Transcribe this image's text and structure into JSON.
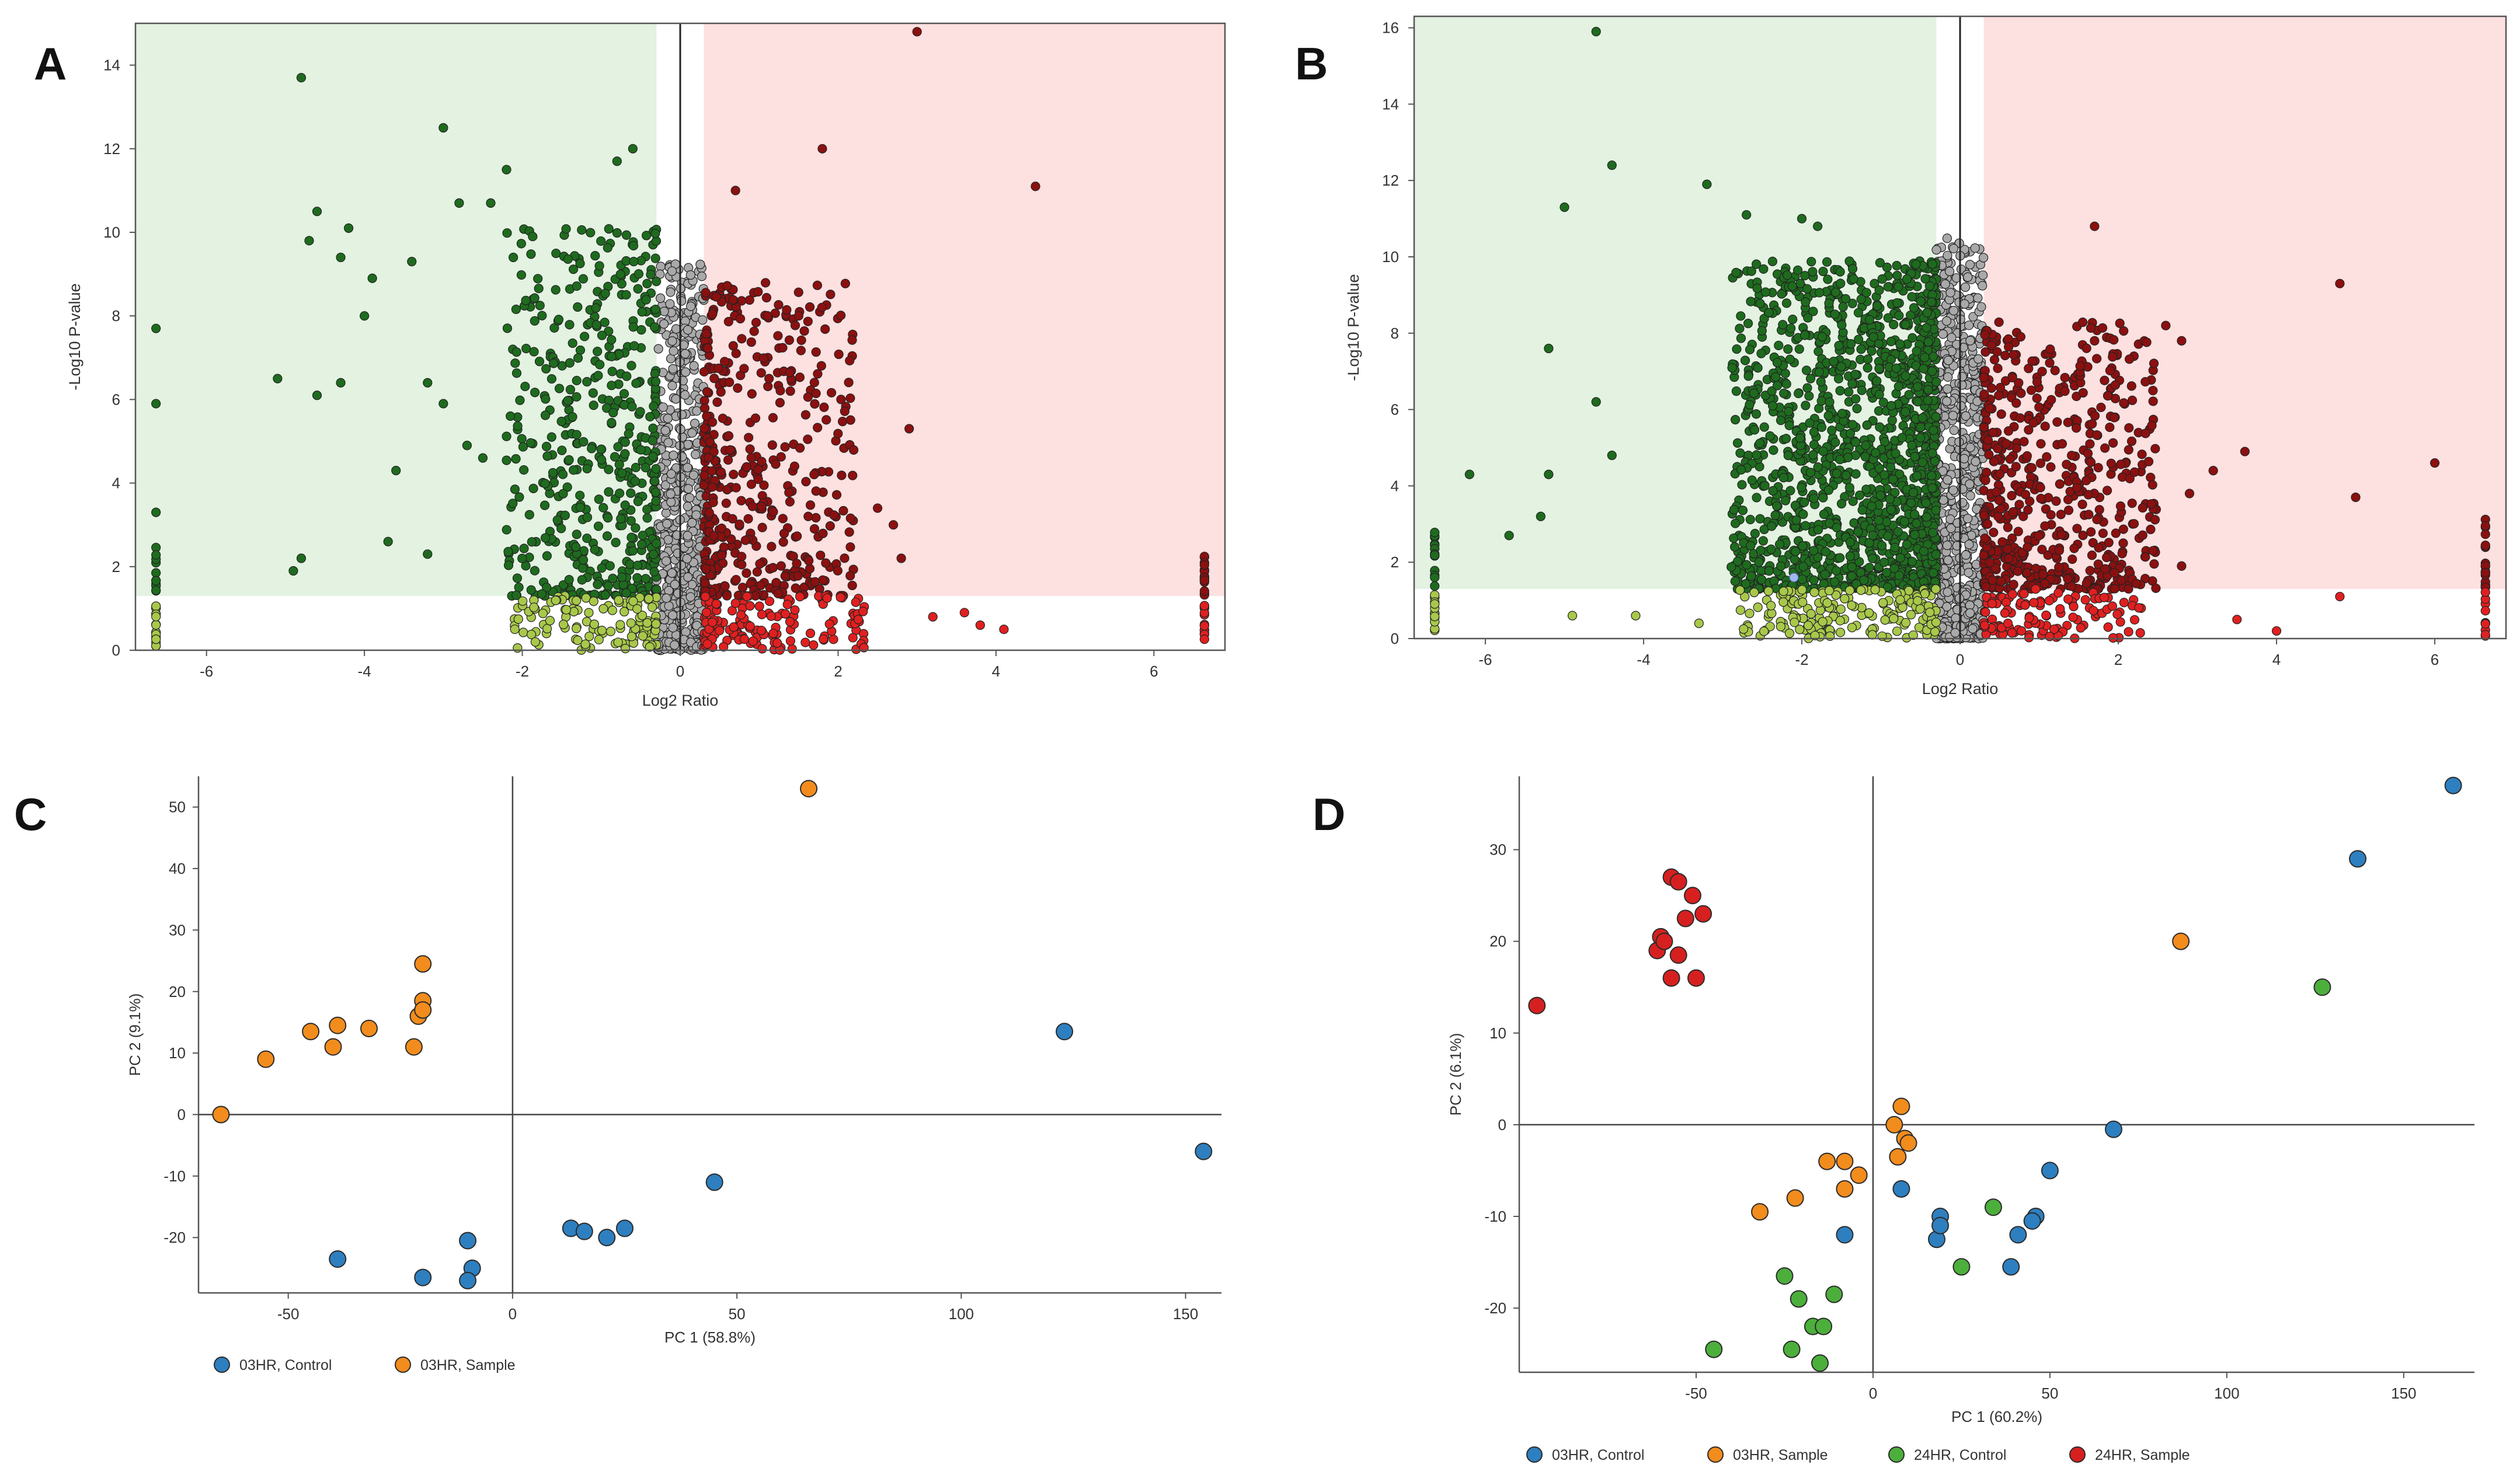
{
  "figure": {
    "panel_labels": [
      "A",
      "B",
      "C",
      "D"
    ]
  },
  "colors": {
    "green_zone": "#e3f2e1",
    "red_zone": "#fde0e0",
    "dark_green": "#1e6b1e",
    "light_green": "#a8c84a",
    "gray": "#a9a9a9",
    "dark_red": "#8b1010",
    "red": "#e02020",
    "blue": "#2e7fbf",
    "orange": "#f28c1c",
    "green": "#4caf3c",
    "pca_red": "#d62020"
  },
  "chart_data": [
    {
      "id": "A",
      "type": "scatter",
      "subtype": "volcano",
      "xlabel": "Log2 Ratio",
      "ylabel": "-Log10 P-value",
      "xlim": [
        -6.9,
        6.9
      ],
      "ylim": [
        0,
        15
      ],
      "xticks": [
        -6,
        -4,
        -2,
        0,
        2,
        4,
        6
      ],
      "yticks": [
        0,
        2,
        4,
        6,
        8,
        10,
        12,
        14
      ],
      "significance_threshold_y": 1.3,
      "fold_change_threshold_x": [
        -0.3,
        0.3
      ],
      "edge_x": [
        -6.64,
        6.64
      ],
      "cluster_seed": 11,
      "notable_points": [
        {
          "x": -4.8,
          "y": 13.7
        },
        {
          "x": -3.0,
          "y": 12.5
        },
        {
          "x": -2.2,
          "y": 11.5
        },
        {
          "x": -0.8,
          "y": 11.7
        },
        {
          "x": -0.6,
          "y": 12.0
        },
        {
          "x": -4.6,
          "y": 10.5
        },
        {
          "x": -4.2,
          "y": 10.1
        },
        {
          "x": -2.8,
          "y": 10.7
        },
        {
          "x": -2.4,
          "y": 10.7
        },
        {
          "x": -4.7,
          "y": 9.8
        },
        {
          "x": -4.3,
          "y": 9.4
        },
        {
          "x": -3.4,
          "y": 9.3
        },
        {
          "x": -3.9,
          "y": 8.9
        },
        {
          "x": -4.0,
          "y": 8.0
        },
        {
          "x": -5.1,
          "y": 6.5
        },
        {
          "x": -4.6,
          "y": 6.1
        },
        {
          "x": -4.3,
          "y": 6.4
        },
        {
          "x": -3.2,
          "y": 6.4
        },
        {
          "x": -3.0,
          "y": 5.9
        },
        {
          "x": -2.7,
          "y": 4.9
        },
        {
          "x": -3.6,
          "y": 4.3
        },
        {
          "x": -3.7,
          "y": 2.6
        },
        {
          "x": -3.2,
          "y": 2.3
        },
        {
          "x": -4.9,
          "y": 1.9
        },
        {
          "x": -4.8,
          "y": 2.2
        },
        {
          "x": -2.5,
          "y": 4.6
        },
        {
          "x": 3.0,
          "y": 14.8
        },
        {
          "x": 1.8,
          "y": 12.0
        },
        {
          "x": 4.5,
          "y": 11.1
        },
        {
          "x": 0.7,
          "y": 11.0
        },
        {
          "x": 1.5,
          "y": 8.0
        },
        {
          "x": 2.9,
          "y": 5.3
        },
        {
          "x": 2.5,
          "y": 3.4
        },
        {
          "x": 2.7,
          "y": 3.0
        },
        {
          "x": 2.8,
          "y": 2.2
        },
        {
          "x": 3.2,
          "y": 0.8
        },
        {
          "x": 3.6,
          "y": 0.9
        },
        {
          "x": 4.1,
          "y": 0.5
        },
        {
          "x": 3.8,
          "y": 0.6
        }
      ]
    },
    {
      "id": "B",
      "type": "scatter",
      "subtype": "volcano",
      "xlabel": "Log2 Ratio",
      "ylabel": "-Log10 P-value",
      "xlim": [
        -6.9,
        6.9
      ],
      "ylim": [
        0,
        16.3
      ],
      "xticks": [
        -6,
        -4,
        -2,
        0,
        2,
        4,
        6
      ],
      "yticks": [
        0,
        2,
        4,
        6,
        8,
        10,
        12,
        14,
        16
      ],
      "significance_threshold_y": 1.3,
      "fold_change_threshold_x": [
        -0.3,
        0.3
      ],
      "edge_x": [
        -6.64,
        6.64
      ],
      "cluster_seed": 29,
      "notable_points": [
        {
          "x": -4.6,
          "y": 15.9
        },
        {
          "x": -4.4,
          "y": 12.4
        },
        {
          "x": -3.2,
          "y": 11.9
        },
        {
          "x": -5.0,
          "y": 11.3
        },
        {
          "x": -2.7,
          "y": 11.1
        },
        {
          "x": -2.0,
          "y": 11.0
        },
        {
          "x": -1.8,
          "y": 10.8
        },
        {
          "x": -5.2,
          "y": 7.6
        },
        {
          "x": -4.6,
          "y": 6.2
        },
        {
          "x": -6.2,
          "y": 4.3
        },
        {
          "x": -5.2,
          "y": 4.3
        },
        {
          "x": -5.7,
          "y": 2.7
        },
        {
          "x": -5.3,
          "y": 3.2
        },
        {
          "x": -4.4,
          "y": 4.8
        },
        {
          "x": 1.7,
          "y": 10.8
        },
        {
          "x": 4.8,
          "y": 9.3
        },
        {
          "x": 2.6,
          "y": 8.2
        },
        {
          "x": 2.8,
          "y": 7.8
        },
        {
          "x": 1.7,
          "y": 7.8
        },
        {
          "x": 6.0,
          "y": 4.6
        },
        {
          "x": 5.0,
          "y": 3.7
        },
        {
          "x": 3.6,
          "y": 4.9
        },
        {
          "x": 3.2,
          "y": 4.4
        },
        {
          "x": 2.9,
          "y": 3.8
        },
        {
          "x": 2.8,
          "y": 1.9
        },
        {
          "x": 4.0,
          "y": 0.2
        },
        {
          "x": 4.8,
          "y": 1.1
        },
        {
          "x": 3.5,
          "y": 0.5
        },
        {
          "x": -4.9,
          "y": 0.6
        },
        {
          "x": -4.1,
          "y": 0.6
        },
        {
          "x": -3.3,
          "y": 0.4
        }
      ],
      "highlight_point": {
        "x": -2.1,
        "y": 1.6,
        "color": "#a0b8f0"
      }
    },
    {
      "id": "C",
      "type": "scatter",
      "subtype": "pca",
      "xlabel": "PC 1 (58.8%)",
      "ylabel": "PC 2 (9.1%)",
      "xlim": [
        -70,
        158
      ],
      "ylim": [
        -29,
        55
      ],
      "xticks": [
        -50,
        0,
        50,
        100,
        150
      ],
      "yticks": [
        -20,
        -10,
        0,
        10,
        20,
        30,
        40,
        50
      ],
      "legend_position": "bottom-left",
      "series": [
        {
          "name": "03HR, Control",
          "color_key": "blue",
          "points": [
            [
              -39,
              -23.5
            ],
            [
              -20,
              -26.5
            ],
            [
              -10,
              -20.5
            ],
            [
              -9,
              -25
            ],
            [
              -10,
              -27
            ],
            [
              13,
              -18.5
            ],
            [
              16,
              -19
            ],
            [
              21,
              -20
            ],
            [
              25,
              -18.5
            ],
            [
              45,
              -11
            ],
            [
              123,
              13.5
            ],
            [
              154,
              -6
            ]
          ]
        },
        {
          "name": "03HR, Sample",
          "color_key": "orange",
          "points": [
            [
              -65,
              0
            ],
            [
              -55,
              9
            ],
            [
              -45,
              13.5
            ],
            [
              -39,
              14.5
            ],
            [
              -40,
              11
            ],
            [
              -32,
              14
            ],
            [
              -22,
              11
            ],
            [
              -21,
              16
            ],
            [
              -20,
              18.5
            ],
            [
              -20,
              17
            ],
            [
              -20,
              24.5
            ],
            [
              66,
              53
            ]
          ]
        }
      ]
    },
    {
      "id": "D",
      "type": "scatter",
      "subtype": "pca",
      "xlabel": "PC 1 (60.2%)",
      "ylabel": "PC 2 (6.1%)",
      "xlim": [
        -100,
        170
      ],
      "ylim": [
        -27,
        38
      ],
      "xticks": [
        -50,
        0,
        50,
        100,
        150
      ],
      "yticks": [
        -20,
        -10,
        0,
        10,
        20,
        30
      ],
      "legend_position": "bottom-left",
      "series": [
        {
          "name": "03HR, Control",
          "color_key": "blue",
          "points": [
            [
              -8,
              -12
            ],
            [
              8,
              -7
            ],
            [
              18,
              -12.5
            ],
            [
              19,
              -10
            ],
            [
              19,
              -11
            ],
            [
              39,
              -15.5
            ],
            [
              41,
              -12
            ],
            [
              46,
              -10
            ],
            [
              45,
              -10.5
            ],
            [
              50,
              -5
            ],
            [
              68,
              -0.5
            ],
            [
              137,
              29
            ],
            [
              164,
              37
            ]
          ]
        },
        {
          "name": "03HR, Sample",
          "color_key": "orange",
          "points": [
            [
              -32,
              -9.5
            ],
            [
              -22,
              -8
            ],
            [
              -13,
              -4
            ],
            [
              -8,
              -4
            ],
            [
              -8,
              -7
            ],
            [
              -4,
              -5.5
            ],
            [
              6,
              0
            ],
            [
              7,
              -3.5
            ],
            [
              8,
              2
            ],
            [
              9,
              -1.5
            ],
            [
              10,
              -2
            ],
            [
              87,
              20
            ]
          ]
        },
        {
          "name": "24HR, Control",
          "color_key": "green",
          "points": [
            [
              -45,
              -24.5
            ],
            [
              -25,
              -16.5
            ],
            [
              -23,
              -24.5
            ],
            [
              -21,
              -19
            ],
            [
              -17,
              -22
            ],
            [
              -15,
              -26
            ],
            [
              -14,
              -22
            ],
            [
              -11,
              -18.5
            ],
            [
              25,
              -15.5
            ],
            [
              34,
              -9
            ],
            [
              127,
              15
            ]
          ]
        },
        {
          "name": "24HR, Sample",
          "color_key": "pca_red",
          "points": [
            [
              -95,
              13
            ],
            [
              -61,
              19
            ],
            [
              -60,
              20.5
            ],
            [
              -59,
              20
            ],
            [
              -57,
              16
            ],
            [
              -55,
              18.5
            ],
            [
              -53,
              22.5
            ],
            [
              -51,
              25
            ],
            [
              -50,
              16
            ],
            [
              -48,
              23
            ],
            [
              -57,
              27
            ],
            [
              -55,
              26.5
            ]
          ]
        }
      ]
    }
  ]
}
